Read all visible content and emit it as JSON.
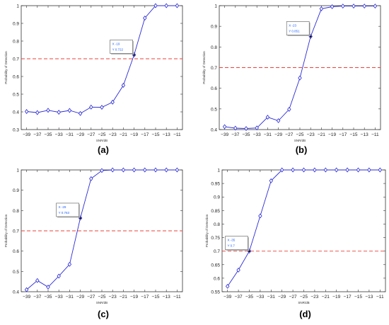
{
  "styles": {
    "line_color": "#2b2bd6",
    "marker_color": "#2b2bd6",
    "threshold_color": "#e8433a",
    "axis_color": "#333333",
    "datatip_text_color": "#2060ff",
    "datatip_border": "#555555"
  },
  "chart_data": [
    {
      "type": "line",
      "panel_label": "(a)",
      "x": [
        -39,
        -37,
        -35,
        -33,
        -31,
        -29,
        -27,
        -25,
        -23,
        -21,
        -19,
        -17,
        -15,
        -13,
        -11
      ],
      "series": [
        {
          "values": [
            0.402,
            0.396,
            0.409,
            0.398,
            0.408,
            0.391,
            0.427,
            0.426,
            0.455,
            0.55,
            0.722,
            0.93,
            1.0,
            1.0,
            1.0
          ]
        }
      ],
      "xlabel": "SNR/dB",
      "ylabel": "Probability of Detection",
      "xlim": [
        -40,
        -10
      ],
      "ylim": [
        0.3,
        1.0
      ],
      "yticks": [
        0.3,
        0.4,
        0.5,
        0.6,
        0.7,
        0.8,
        0.9,
        1
      ],
      "ytick_labels": [
        "0.3",
        "0.4",
        "0.5",
        "0.6",
        "0.7",
        "0.8",
        "0.9",
        "1"
      ],
      "xtick_labels": [
        "−39",
        "−37",
        "−35",
        "−33",
        "−31",
        "−29",
        "−27",
        "−25",
        "−23",
        "−21",
        "−19",
        "−17",
        "−15",
        "−13",
        "−11"
      ],
      "threshold": 0.7,
      "datatip": {
        "x": -19,
        "y": 0.722,
        "x_line": "X  -19",
        "y_line": "Y  0.722"
      }
    },
    {
      "type": "line",
      "panel_label": "(b)",
      "x": [
        -39,
        -37,
        -35,
        -33,
        -31,
        -29,
        -27,
        -25,
        -23,
        -21,
        -19,
        -17,
        -15,
        -13,
        -11
      ],
      "series": [
        {
          "values": [
            0.414,
            0.407,
            0.405,
            0.408,
            0.46,
            0.443,
            0.498,
            0.65,
            0.851,
            0.985,
            0.995,
            0.998,
            0.998,
            0.998,
            0.998
          ]
        }
      ],
      "xlabel": "SNR/dB",
      "ylabel": "Probability of Detection",
      "xlim": [
        -40,
        -10
      ],
      "ylim": [
        0.4,
        1.0
      ],
      "yticks": [
        0.4,
        0.5,
        0.6,
        0.7,
        0.8,
        0.9,
        1
      ],
      "ytick_labels": [
        "0.4",
        "0.5",
        "0.6",
        "0.7",
        "0.8",
        "0.9",
        "1"
      ],
      "xtick_labels": [
        "−39",
        "−37",
        "−35",
        "−33",
        "−31",
        "−29",
        "−27",
        "−25",
        "−23",
        "−21",
        "−19",
        "−17",
        "−15",
        "−13",
        "−11"
      ],
      "threshold": 0.7,
      "datatip": {
        "x": -23,
        "y": 0.851,
        "x_line": "X  -23",
        "y_line": "Y  0.851"
      }
    },
    {
      "type": "line",
      "panel_label": "(c)",
      "x": [
        -39,
        -37,
        -35,
        -33,
        -31,
        -29,
        -27,
        -25,
        -23,
        -21,
        -19,
        -17,
        -15,
        -13,
        -11
      ],
      "series": [
        {
          "values": [
            0.41,
            0.455,
            0.423,
            0.477,
            0.535,
            0.763,
            0.957,
            0.997,
            1.0,
            1.0,
            1.0,
            1.0,
            1.0,
            1.0,
            1.0
          ]
        }
      ],
      "xlabel": "SNR/dB",
      "ylabel": "Probability of Detection",
      "xlim": [
        -40,
        -10
      ],
      "ylim": [
        0.4,
        1.0
      ],
      "yticks": [
        0.4,
        0.5,
        0.6,
        0.7,
        0.8,
        0.9,
        1
      ],
      "ytick_labels": [
        "0.4",
        "0.5",
        "0.6",
        "0.7",
        "0.8",
        "0.9",
        "1"
      ],
      "xtick_labels": [
        "−39",
        "−37",
        "−35",
        "−33",
        "−31",
        "−29",
        "−27",
        "−25",
        "−23",
        "−21",
        "−19",
        "−17",
        "−15",
        "−13",
        "−11"
      ],
      "threshold": 0.7,
      "datatip": {
        "x": -29,
        "y": 0.763,
        "x_line": "X  -29",
        "y_line": "Y  0.763"
      }
    },
    {
      "type": "line",
      "panel_label": "(d)",
      "x": [
        -39,
        -37,
        -35,
        -33,
        -31,
        -29,
        -27,
        -25,
        -23,
        -21,
        -19,
        -17,
        -15,
        -13,
        -11
      ],
      "series": [
        {
          "values": [
            0.57,
            0.63,
            0.7,
            0.83,
            0.96,
            1.0,
            1.0,
            1.0,
            1.0,
            1.0,
            1.0,
            1.0,
            1.0,
            1.0,
            1.0
          ]
        }
      ],
      "xlabel": "SNR/dB",
      "ylabel": "Probability of Detection",
      "xlim": [
        -40,
        -10
      ],
      "ylim": [
        0.55,
        1.0
      ],
      "yticks": [
        0.55,
        0.6,
        0.65,
        0.7,
        0.75,
        0.8,
        0.85,
        0.9,
        0.95,
        1
      ],
      "ytick_labels": [
        "0.55",
        "0.6",
        "0.65",
        "0.7",
        "0.75",
        "0.8",
        "0.85",
        "0.9",
        "0.95",
        "1"
      ],
      "xtick_labels": [
        "−39",
        "−37",
        "−35",
        "−33",
        "−31",
        "−29",
        "−27",
        "−25",
        "−23",
        "−21",
        "−19",
        "−17",
        "−15",
        "−13",
        "−11"
      ],
      "threshold": 0.7,
      "datatip": {
        "x": -35,
        "y": 0.7,
        "x_line": "X  -35",
        "y_line": "Y  0.7"
      }
    }
  ]
}
